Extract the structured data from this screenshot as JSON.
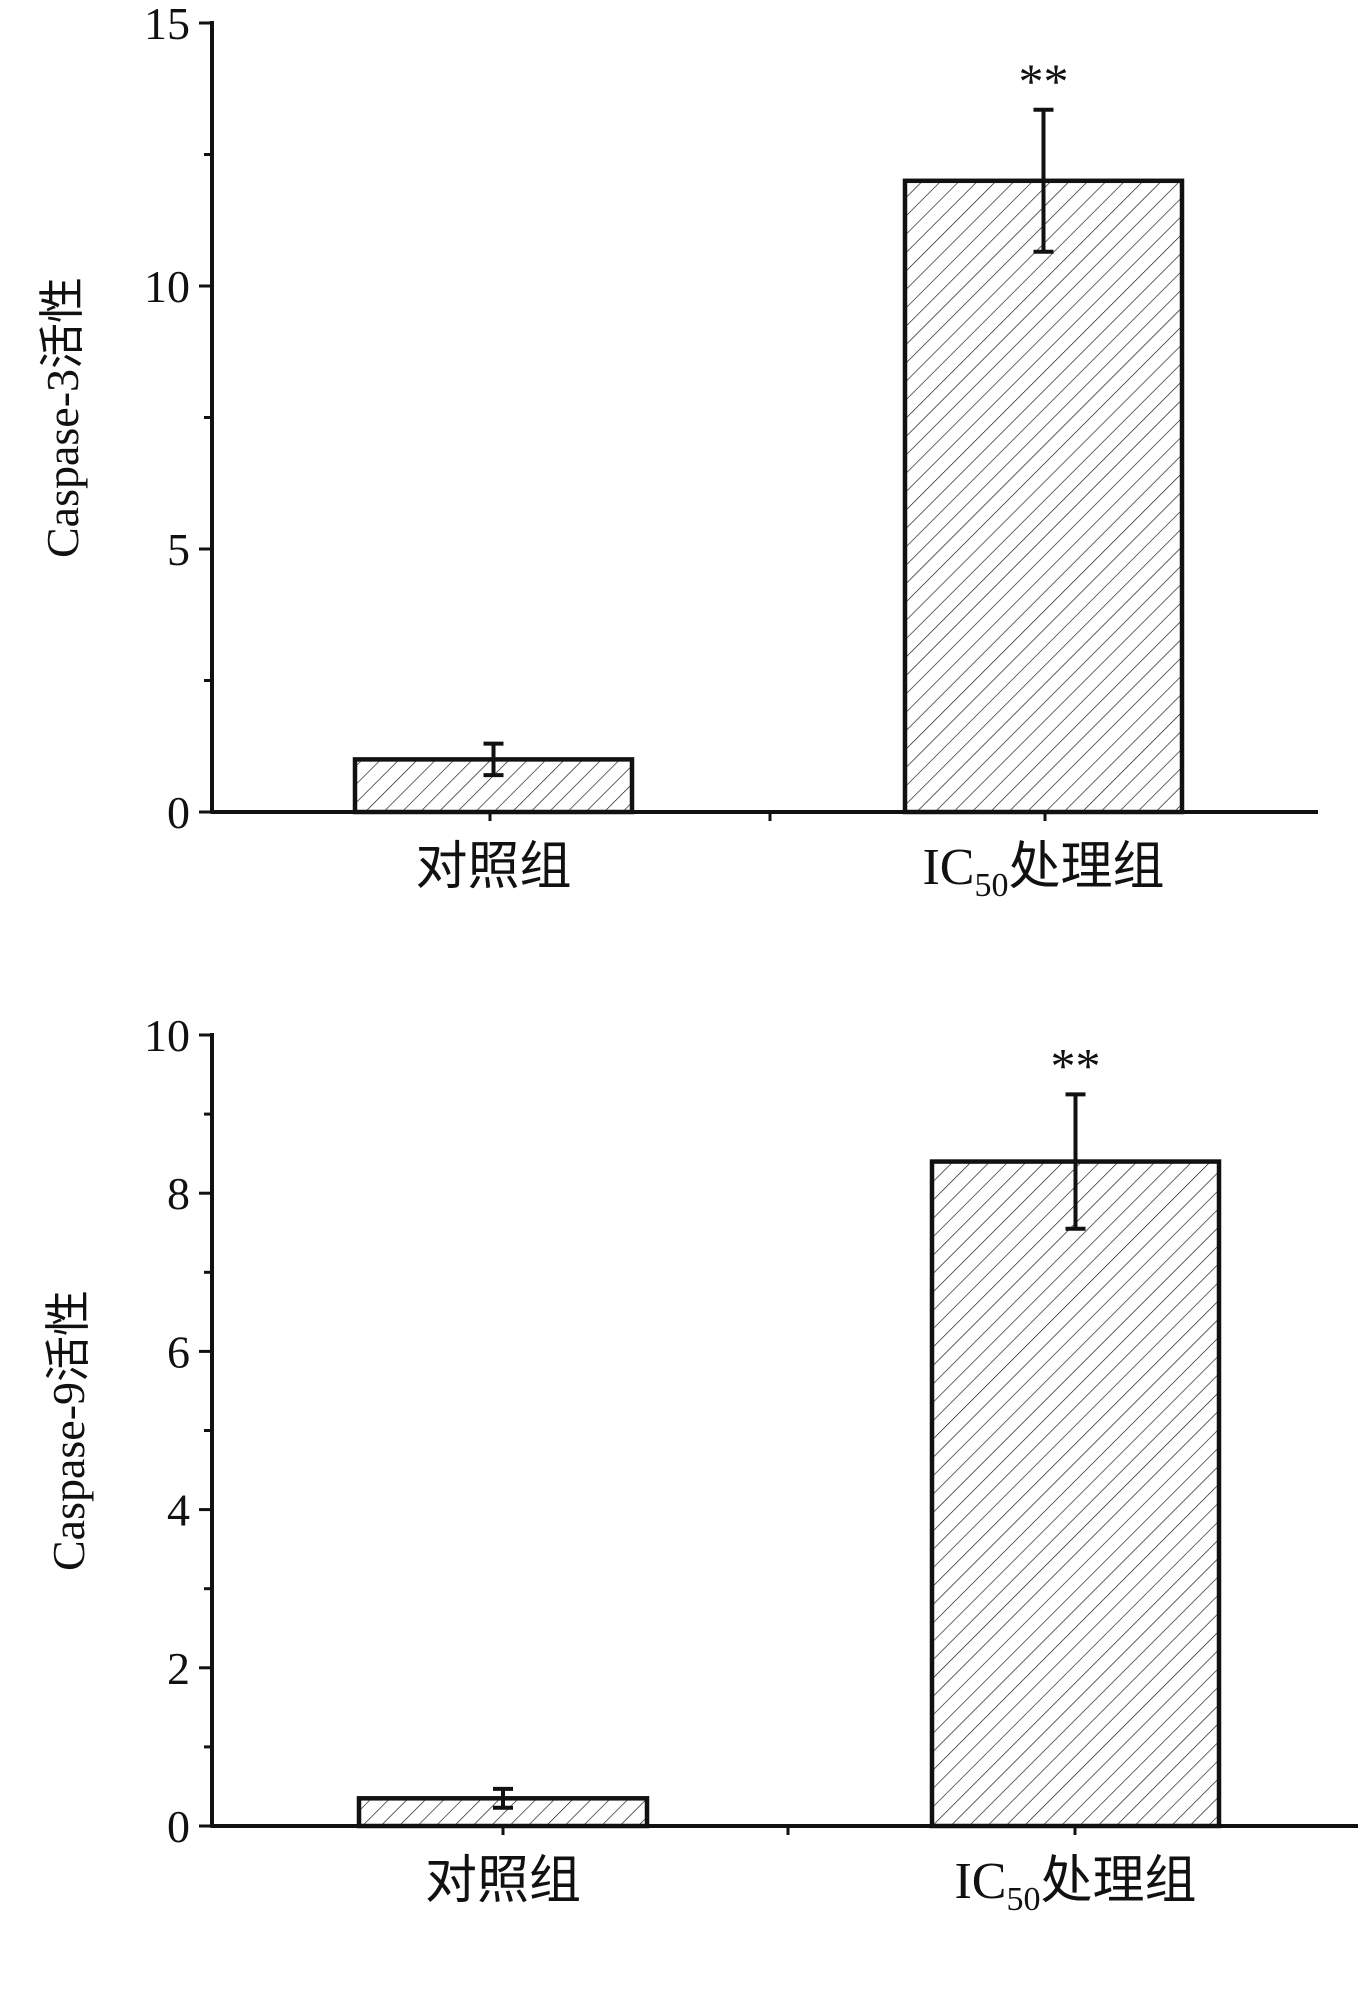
{
  "chart_data": [
    {
      "type": "bar",
      "categories": [
        "对照组",
        "IC50处理组"
      ],
      "category_labels": [
        {
          "text": "对照组"
        },
        {
          "main": "IC",
          "sub": "50",
          "rest": "处理组"
        }
      ],
      "values": [
        1.0,
        12.0
      ],
      "errors": [
        0.3,
        1.35
      ],
      "significance": [
        "",
        "**"
      ],
      "title": "",
      "xlabel": "",
      "ylabel": "Caspase-3活性",
      "ylim": [
        0,
        15
      ],
      "yticks": [
        0,
        5,
        10,
        15
      ],
      "minor_ytick_step": 2.5,
      "bar_pattern": "diagonal-hatch",
      "grid": false,
      "legend": "none"
    },
    {
      "type": "bar",
      "categories": [
        "对照组",
        "IC50处理组"
      ],
      "category_labels": [
        {
          "text": "对照组"
        },
        {
          "main": "IC",
          "sub": "50",
          "rest": "处理组"
        }
      ],
      "values": [
        0.35,
        8.4
      ],
      "errors": [
        0.12,
        0.85
      ],
      "significance": [
        "",
        "**"
      ],
      "title": "",
      "xlabel": "",
      "ylabel": "Caspase-9活性",
      "ylim": [
        0,
        10
      ],
      "yticks": [
        0,
        2,
        4,
        6,
        8,
        10
      ],
      "minor_ytick_step": 1,
      "bar_pattern": "diagonal-hatch",
      "grid": false,
      "legend": "none"
    }
  ],
  "colors": {
    "ink": "#111111",
    "background": "#ffffff"
  }
}
